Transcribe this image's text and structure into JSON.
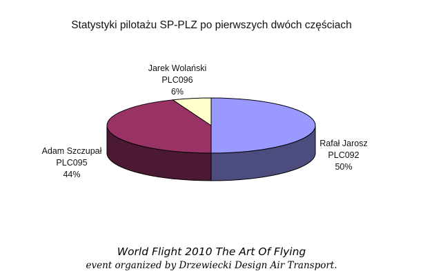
{
  "chart_data": {
    "type": "pie",
    "title": "Statystyki pilotażu SP-PLZ po pierwszych dwóch częściach",
    "slices": [
      {
        "name": "Rafał Jarosz",
        "code": "PLC092",
        "value": 50,
        "label": "50%",
        "color": "#9999ff",
        "side_color": "#4c4c7f"
      },
      {
        "name": "Adam Szczupał",
        "code": "PLC095",
        "value": 44,
        "label": "44%",
        "color": "#993366",
        "side_color": "#4c1933"
      },
      {
        "name": "Jarek Wolański",
        "code": "PLC096",
        "value": 6,
        "label": "6%",
        "color": "#ffffcc",
        "side_color": "#7f7f66"
      }
    ],
    "style": "3d"
  },
  "footer": {
    "title": "World Flight 2010 The Art Of Flying",
    "subtitle": "event organized by Drzewiecki Design Air Transport."
  }
}
